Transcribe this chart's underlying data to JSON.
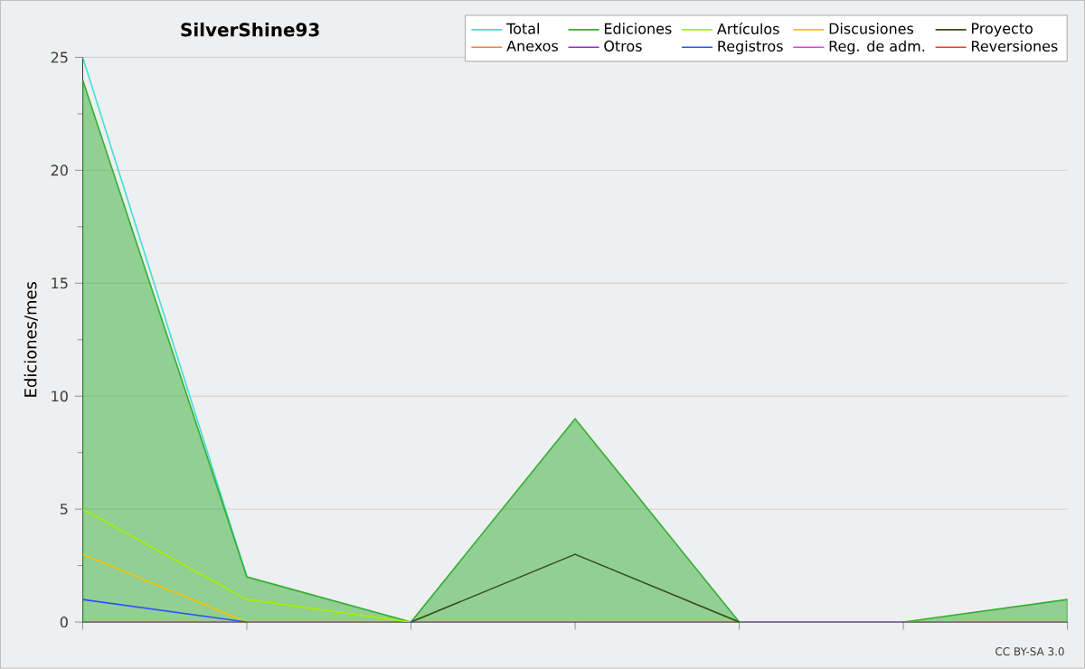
{
  "chart_data": {
    "type": "line",
    "title": "SilverShine93",
    "ylabel": "Ediciones/mes",
    "categories": [
      null,
      null,
      null,
      null,
      null,
      null,
      null
    ],
    "series": [
      {
        "name": "Total",
        "color": "#40e0d0",
        "values": [
          25,
          2,
          null,
          null,
          null,
          null,
          null
        ]
      },
      {
        "name": "Ediciones",
        "type": "area",
        "color": "#33b033",
        "values": [
          24,
          2,
          0,
          9,
          0,
          0,
          1
        ]
      },
      {
        "name": "Artículos",
        "color": "#aaee00",
        "values": [
          5,
          1,
          0,
          null,
          null,
          null,
          null
        ]
      },
      {
        "name": "Discusiones",
        "color": "#ffc000",
        "values": [
          3,
          0,
          null,
          null,
          null,
          null,
          null
        ]
      },
      {
        "name": "Proyecto",
        "color": "#3a4a20",
        "values": [
          null,
          null,
          0,
          3,
          0,
          null,
          null
        ]
      },
      {
        "name": "Anexos",
        "color": "#ff7f40",
        "values": [
          null,
          null,
          null,
          null,
          null,
          null,
          null
        ]
      },
      {
        "name": "Otros",
        "color": "#8a2be2",
        "values": [
          null,
          null,
          null,
          null,
          null,
          null,
          null
        ]
      },
      {
        "name": "Registros",
        "color": "#3050ff",
        "values": [
          1,
          0,
          null,
          null,
          null,
          null,
          null
        ]
      },
      {
        "name": "Reg. de adm.",
        "color": "#e040e0",
        "values": [
          null,
          null,
          null,
          null,
          null,
          null,
          null
        ]
      },
      {
        "name": "Reversiones",
        "color": "#ff3030",
        "values": [
          null,
          null,
          null,
          null,
          null,
          null,
          null
        ]
      }
    ],
    "ylim": [
      0,
      25
    ],
    "yticks": [
      0,
      5,
      10,
      15,
      20,
      25
    ],
    "grid": "y",
    "legend": "top right",
    "annotations": [
      "CC BY-SA 3.0"
    ]
  }
}
